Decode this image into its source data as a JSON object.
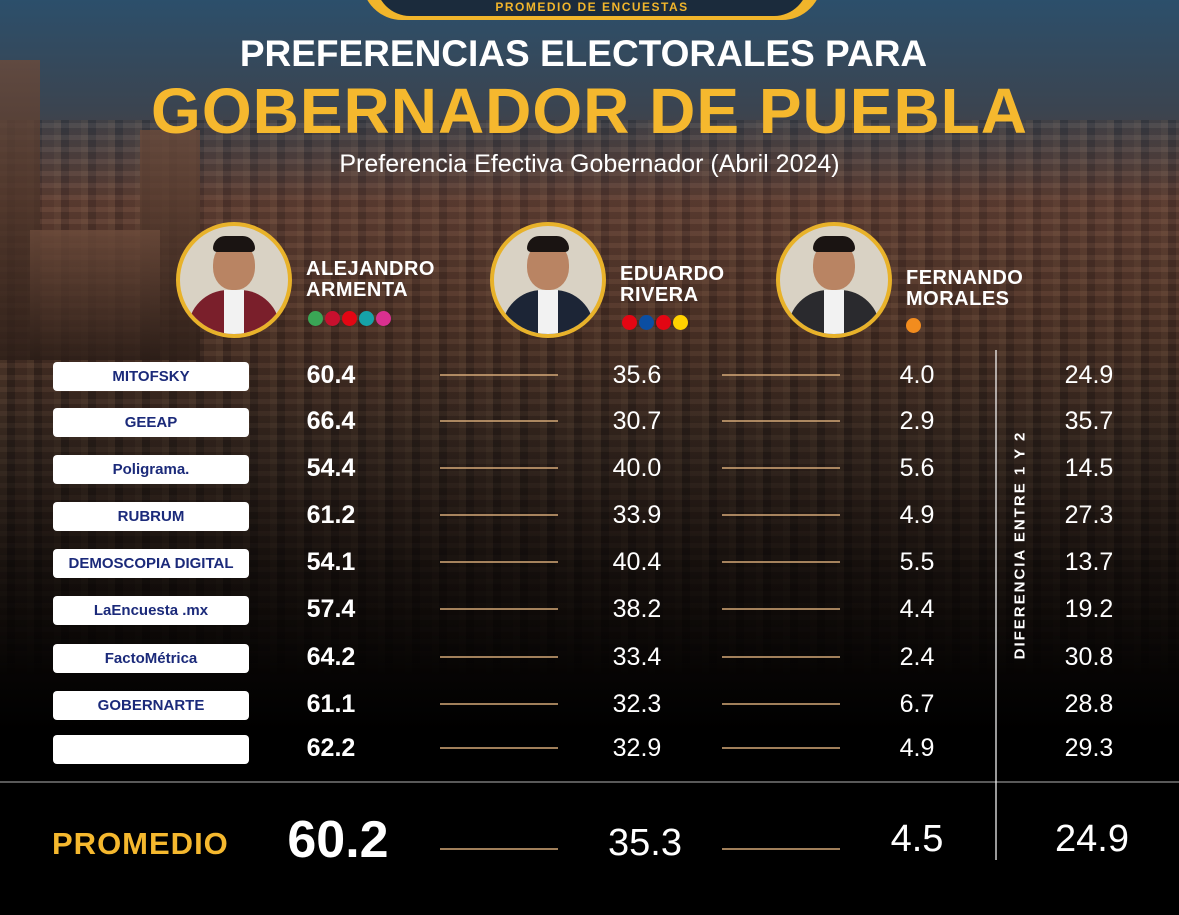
{
  "header": {
    "badge": "PROMEDIO DE ENCUESTAS",
    "title_line1": "PREFERENCIAS ELECTORALES PARA",
    "title_line2": "GOBERNADOR DE PUEBLA",
    "subtitle": "Preferencia Efectiva Gobernador (Abril 2024)"
  },
  "candidates": [
    {
      "first": "ALEJANDRO",
      "last": "ARMENTA",
      "jacket_color": "#7a1f2b",
      "party_colors": [
        "#3aa655",
        "#c8102e",
        "#e30613",
        "#16a3a8",
        "#d9308f"
      ]
    },
    {
      "first": "EDUARDO",
      "last": "RIVERA",
      "jacket_color": "#1c2536",
      "party_colors": [
        "#e30613",
        "#0b4ea2",
        "#e30613",
        "#ffd200"
      ]
    },
    {
      "first": "FERNANDO",
      "last": "MORALES",
      "jacket_color": "#2a2a2e",
      "party_colors": [
        "#f28c1e"
      ]
    }
  ],
  "difference_label": "DIFERENCIA ENTRE 1 Y 2",
  "average_label": "PROMEDIO",
  "chart_data": {
    "type": "table",
    "title": "GOBERNADOR DE PUEBLA",
    "columns": [
      "ALEJANDRO ARMENTA",
      "EDUARDO RIVERA",
      "FERNANDO MORALES",
      "DIFERENCIA ENTRE 1 Y 2"
    ],
    "rows": [
      {
        "pollster": "MITOFSKY",
        "values": [
          "60.4",
          "35.6",
          "4.0",
          "24.9"
        ]
      },
      {
        "pollster": "GEEAP",
        "values": [
          "66.4",
          "30.7",
          "2.9",
          "35.7"
        ]
      },
      {
        "pollster": "Poligrama.",
        "values": [
          "54.4",
          "40.0",
          "5.6",
          "14.5"
        ]
      },
      {
        "pollster": "RUBRUM",
        "values": [
          "61.2",
          "33.9",
          "4.9",
          "27.3"
        ]
      },
      {
        "pollster": "DEMOSCOPIA DIGITAL",
        "values": [
          "54.1",
          "40.4",
          "5.5",
          "13.7"
        ]
      },
      {
        "pollster": "LaEncuesta .mx",
        "values": [
          "57.4",
          "38.2",
          "4.4",
          "19.2"
        ]
      },
      {
        "pollster": "FactoMétrica",
        "values": [
          "64.2",
          "33.4",
          "2.4",
          "30.8"
        ]
      },
      {
        "pollster": "GOBERNARTE",
        "values": [
          "61.1",
          "32.3",
          "6.7",
          "28.8"
        ]
      },
      {
        "pollster": "",
        "values": [
          "62.2",
          "32.9",
          "4.9",
          "29.3"
        ]
      }
    ],
    "average": [
      "60.2",
      "35.3",
      "4.5",
      "24.9"
    ]
  }
}
